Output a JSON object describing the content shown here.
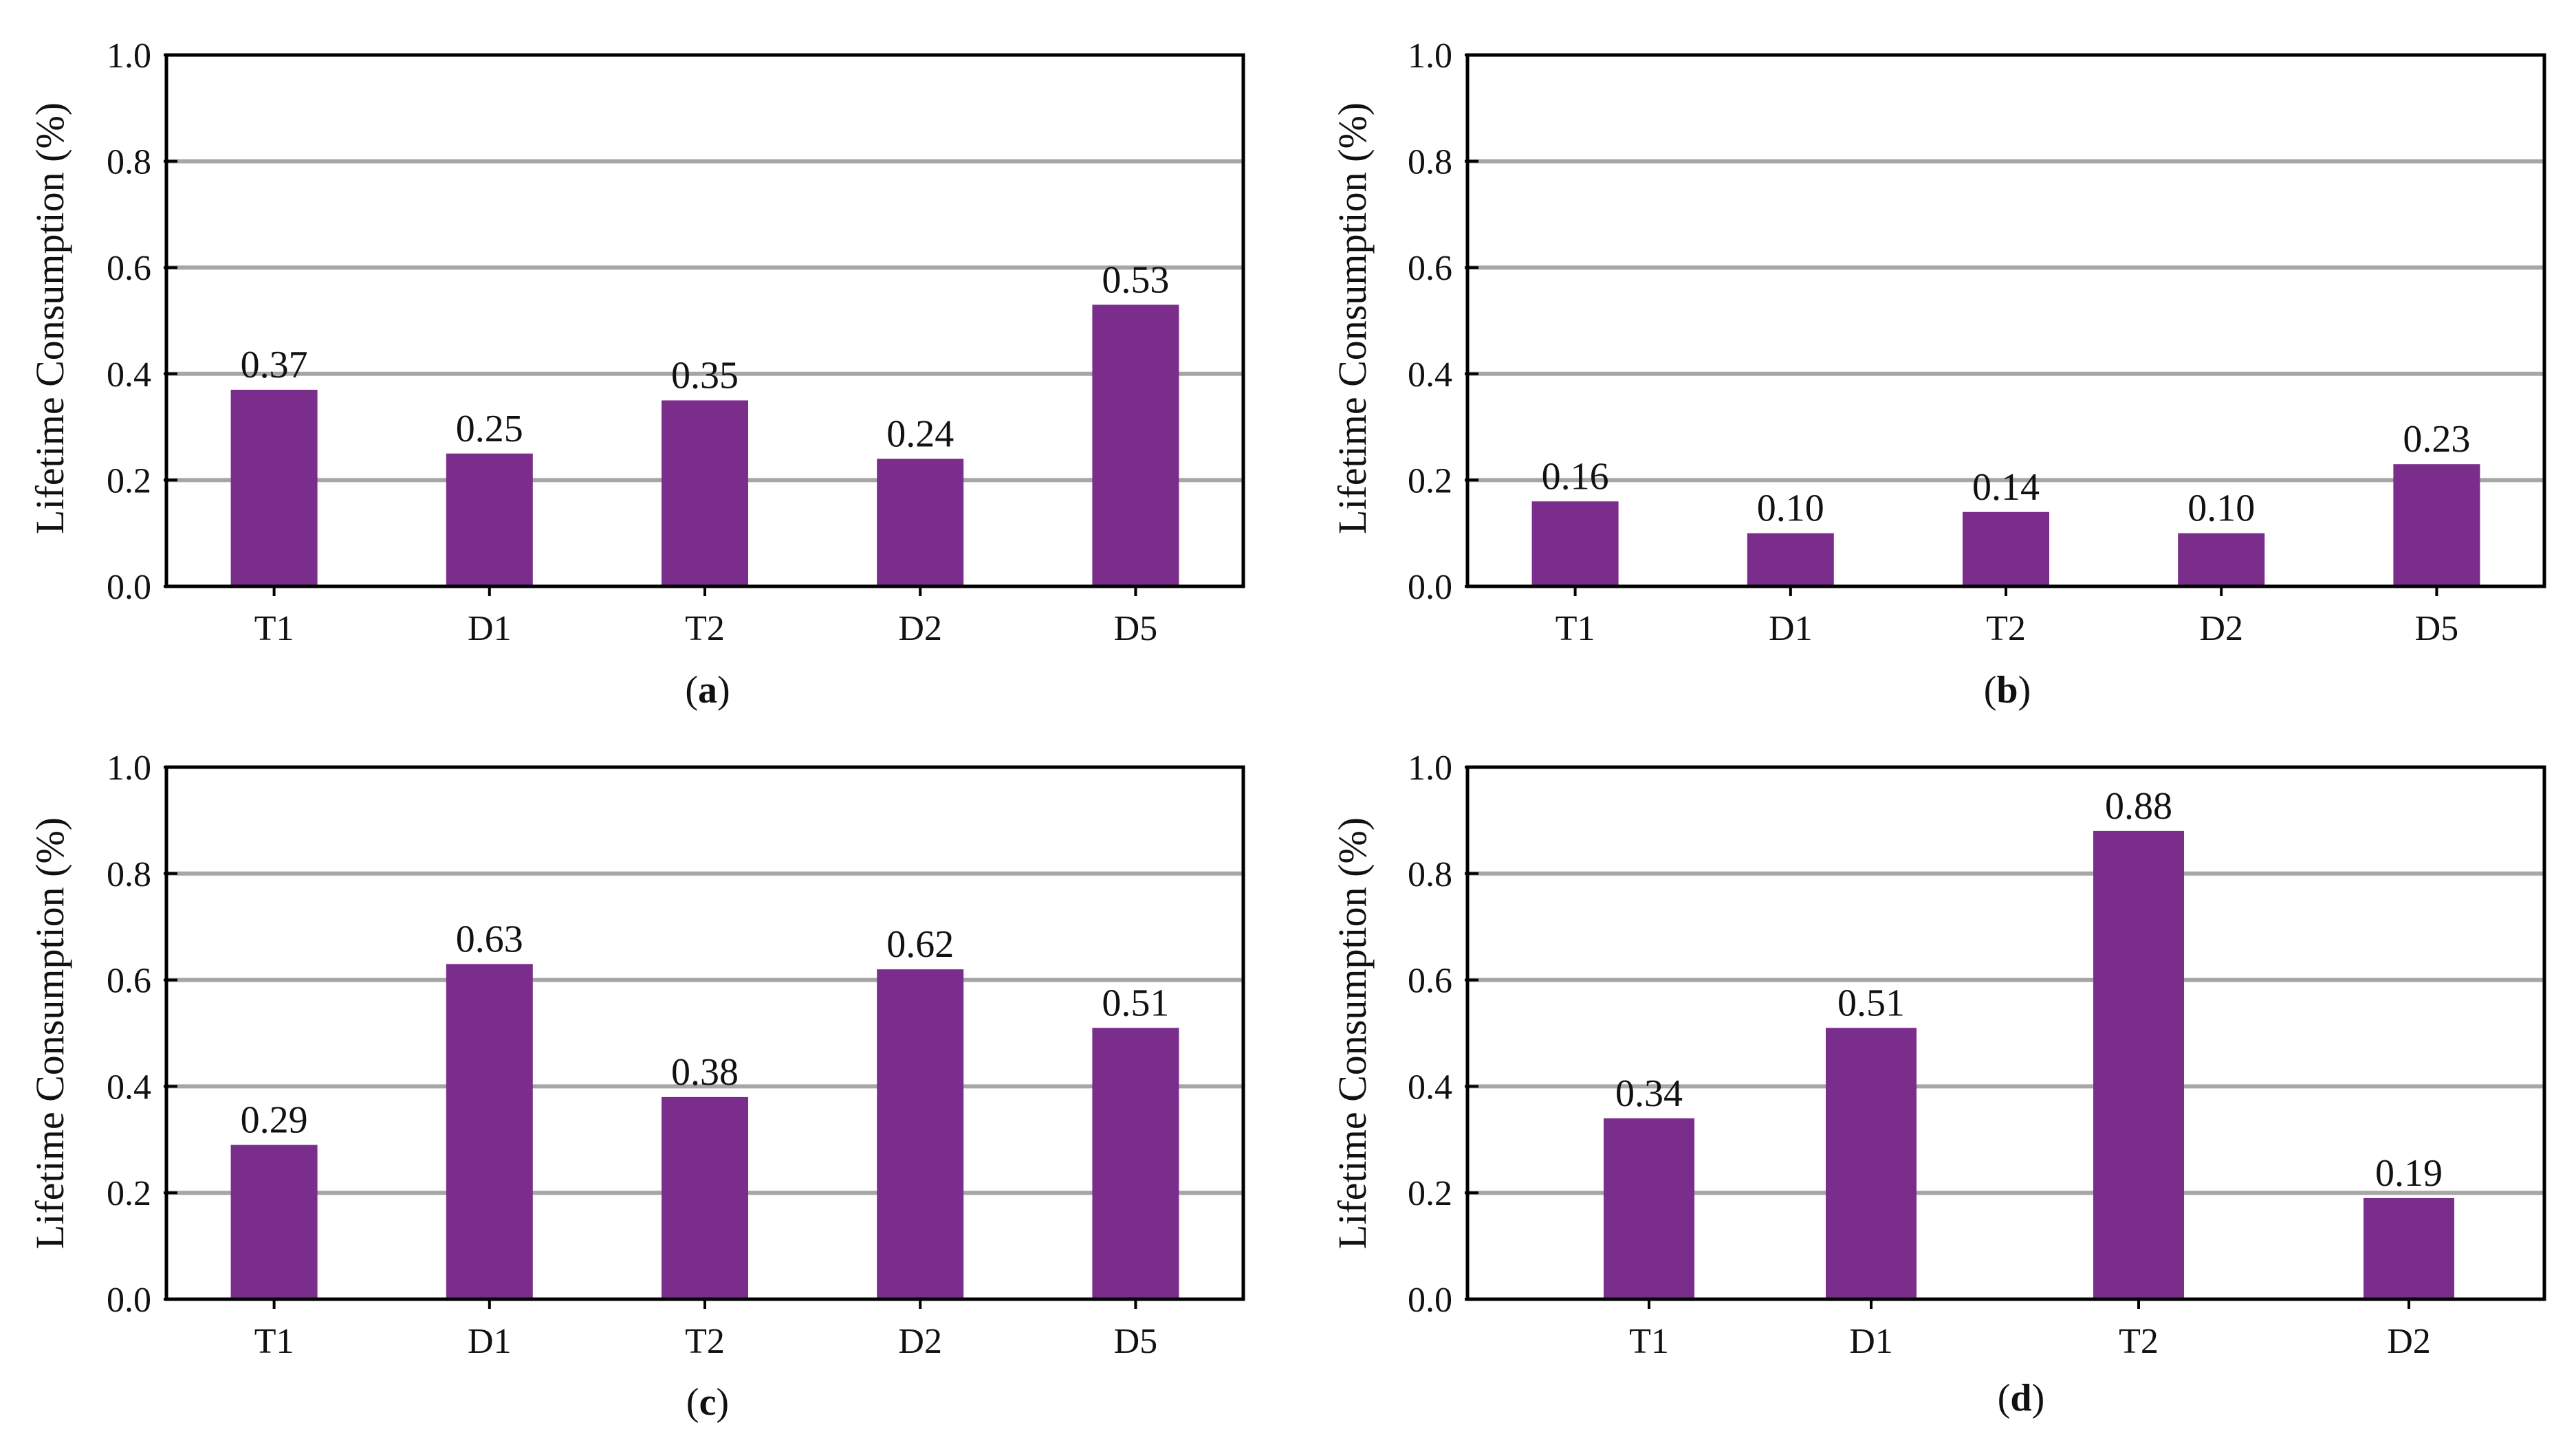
{
  "figure": {
    "bar_color": "#7b2d8b",
    "grid_color": "#a6a6a6",
    "axis_color": "#000000"
  },
  "chart_data": [
    {
      "id": "a",
      "type": "bar",
      "caption_open": "(",
      "caption_letter": "a",
      "caption_close": ")",
      "ylabel": "Lifetime Consumption (%)",
      "xlabel": "",
      "ylim": [
        0,
        1.0
      ],
      "yticks": [
        "0.0",
        "0.2",
        "0.4",
        "0.6",
        "0.8",
        "1.0"
      ],
      "grid": true,
      "categories": [
        "T1",
        "D1",
        "T2",
        "D2",
        "D5"
      ],
      "values": [
        0.37,
        0.25,
        0.35,
        0.24,
        0.53
      ],
      "value_labels": [
        "0.37",
        "0.25",
        "0.35",
        "0.24",
        "0.53"
      ]
    },
    {
      "id": "b",
      "type": "bar",
      "caption_open": "(",
      "caption_letter": "b",
      "caption_close": ")",
      "ylabel": "Lifetime Consumption (%)",
      "xlabel": "",
      "ylim": [
        0,
        1.0
      ],
      "yticks": [
        "0.0",
        "0.2",
        "0.4",
        "0.6",
        "0.8",
        "1.0"
      ],
      "grid": true,
      "categories": [
        "T1",
        "D1",
        "T2",
        "D2",
        "D5"
      ],
      "values": [
        0.16,
        0.1,
        0.14,
        0.1,
        0.23
      ],
      "value_labels": [
        "0.16",
        "0.10",
        "0.14",
        "0.10",
        "0.23"
      ]
    },
    {
      "id": "c",
      "type": "bar",
      "caption_open": "(",
      "caption_letter": "c",
      "caption_close": ")",
      "ylabel": "Lifetime Consumption (%)",
      "xlabel": "",
      "ylim": [
        0,
        1.0
      ],
      "yticks": [
        "0.0",
        "0.2",
        "0.4",
        "0.6",
        "0.8",
        "1.0"
      ],
      "grid": true,
      "categories": [
        "T1",
        "D1",
        "T2",
        "D2",
        "D5"
      ],
      "values": [
        0.29,
        0.63,
        0.38,
        0.62,
        0.51
      ],
      "value_labels": [
        "0.29",
        "0.63",
        "0.38",
        "0.62",
        "0.51"
      ]
    },
    {
      "id": "d",
      "type": "bar",
      "caption_open": "(",
      "caption_letter": "d",
      "caption_close": ")",
      "ylabel": "Lifetime Consumption (%)",
      "xlabel": "",
      "ylim": [
        0,
        1.0
      ],
      "yticks": [
        "0.0",
        "0.2",
        "0.4",
        "0.6",
        "0.8",
        "1.0"
      ],
      "grid": true,
      "categories": [
        "T1",
        "D1",
        "T2",
        "D2"
      ],
      "values": [
        0.34,
        0.51,
        0.88,
        0.19
      ],
      "value_labels": [
        "0.34",
        "0.51",
        "0.88",
        "0.19"
      ]
    }
  ]
}
